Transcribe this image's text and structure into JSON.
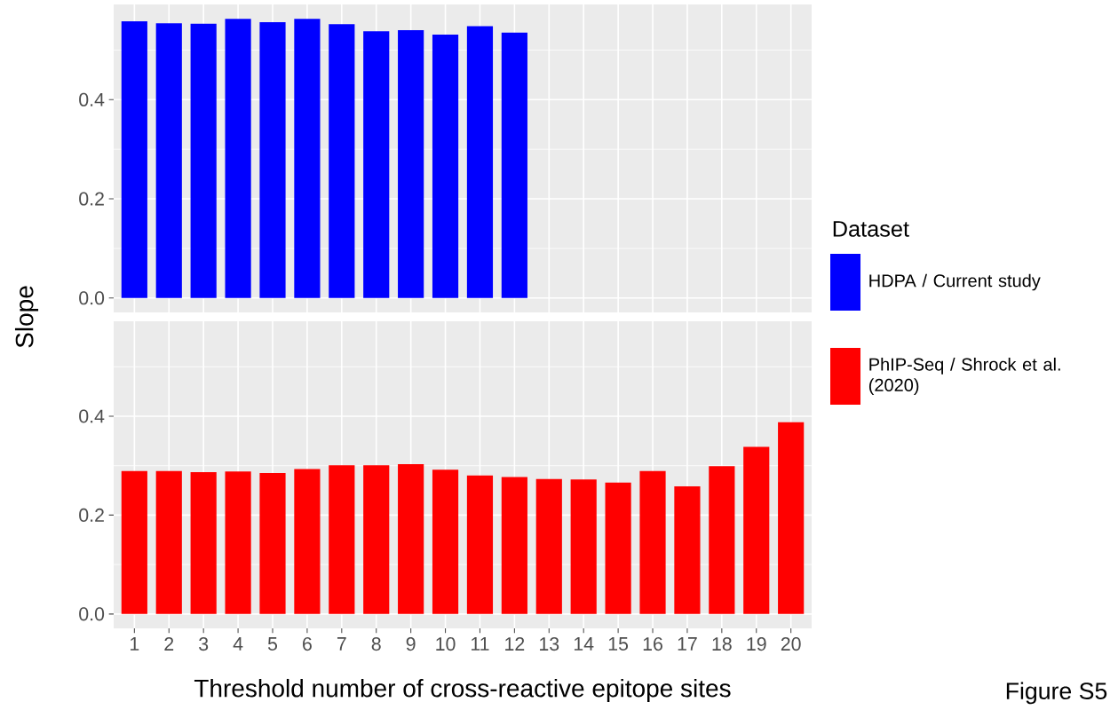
{
  "chart_data": [
    {
      "type": "bar",
      "ylabel": "Slope",
      "legend_title": "Dataset",
      "legend": "right",
      "grid": true,
      "tick_labels": "y",
      "categories": [
        "1",
        "2",
        "3",
        "4",
        "5",
        "6",
        "7",
        "8",
        "9",
        "10",
        "11",
        "12",
        "13",
        "14",
        "15",
        "16",
        "17",
        "18",
        "19",
        "20"
      ],
      "ylim": [
        -0.029,
        0.592
      ],
      "yticks": [
        {
          "value": 0,
          "label": "0.0"
        },
        {
          "value": 0.1,
          "label": null
        },
        {
          "value": 0.2,
          "label": "0.2"
        },
        {
          "value": 0.3,
          "label": null
        },
        {
          "value": 0.4,
          "label": "0.4"
        },
        {
          "value": 0.5,
          "label": null
        }
      ],
      "series": [
        {
          "name": "HDPA / Current study",
          "color": "#0000ff",
          "values": [
            0.558,
            0.554,
            0.553,
            0.563,
            0.556,
            0.563,
            0.552,
            0.538,
            0.54,
            0.531,
            0.548,
            0.535,
            null,
            null,
            null,
            null,
            null,
            null,
            null,
            null
          ]
        }
      ]
    },
    {
      "type": "bar",
      "xlabel": "Threshold number of cross-reactive epitope sites",
      "legend": "right",
      "grid": true,
      "categories": [
        "1",
        "2",
        "3",
        "4",
        "5",
        "6",
        "7",
        "8",
        "9",
        "10",
        "11",
        "12",
        "13",
        "14",
        "15",
        "16",
        "17",
        "18",
        "19",
        "20"
      ],
      "ylim": [
        -0.029,
        0.592
      ],
      "yticks": [
        {
          "value": 0,
          "label": "0.0"
        },
        {
          "value": 0.1,
          "label": null
        },
        {
          "value": 0.2,
          "label": "0.2"
        },
        {
          "value": 0.3,
          "label": null
        },
        {
          "value": 0.4,
          "label": "0.4"
        },
        {
          "value": 0.5,
          "label": null
        }
      ],
      "annotations": [
        "Figure S5"
      ],
      "series": [
        {
          "name": "PhIP-Seq / Shrock et al. (2020)",
          "color": "#ff0000",
          "values": [
            0.289,
            0.289,
            0.287,
            0.288,
            0.285,
            0.293,
            0.301,
            0.301,
            0.303,
            0.292,
            0.28,
            0.277,
            0.273,
            0.272,
            0.266,
            0.289,
            0.258,
            0.299,
            0.338,
            0.388
          ]
        }
      ]
    }
  ]
}
